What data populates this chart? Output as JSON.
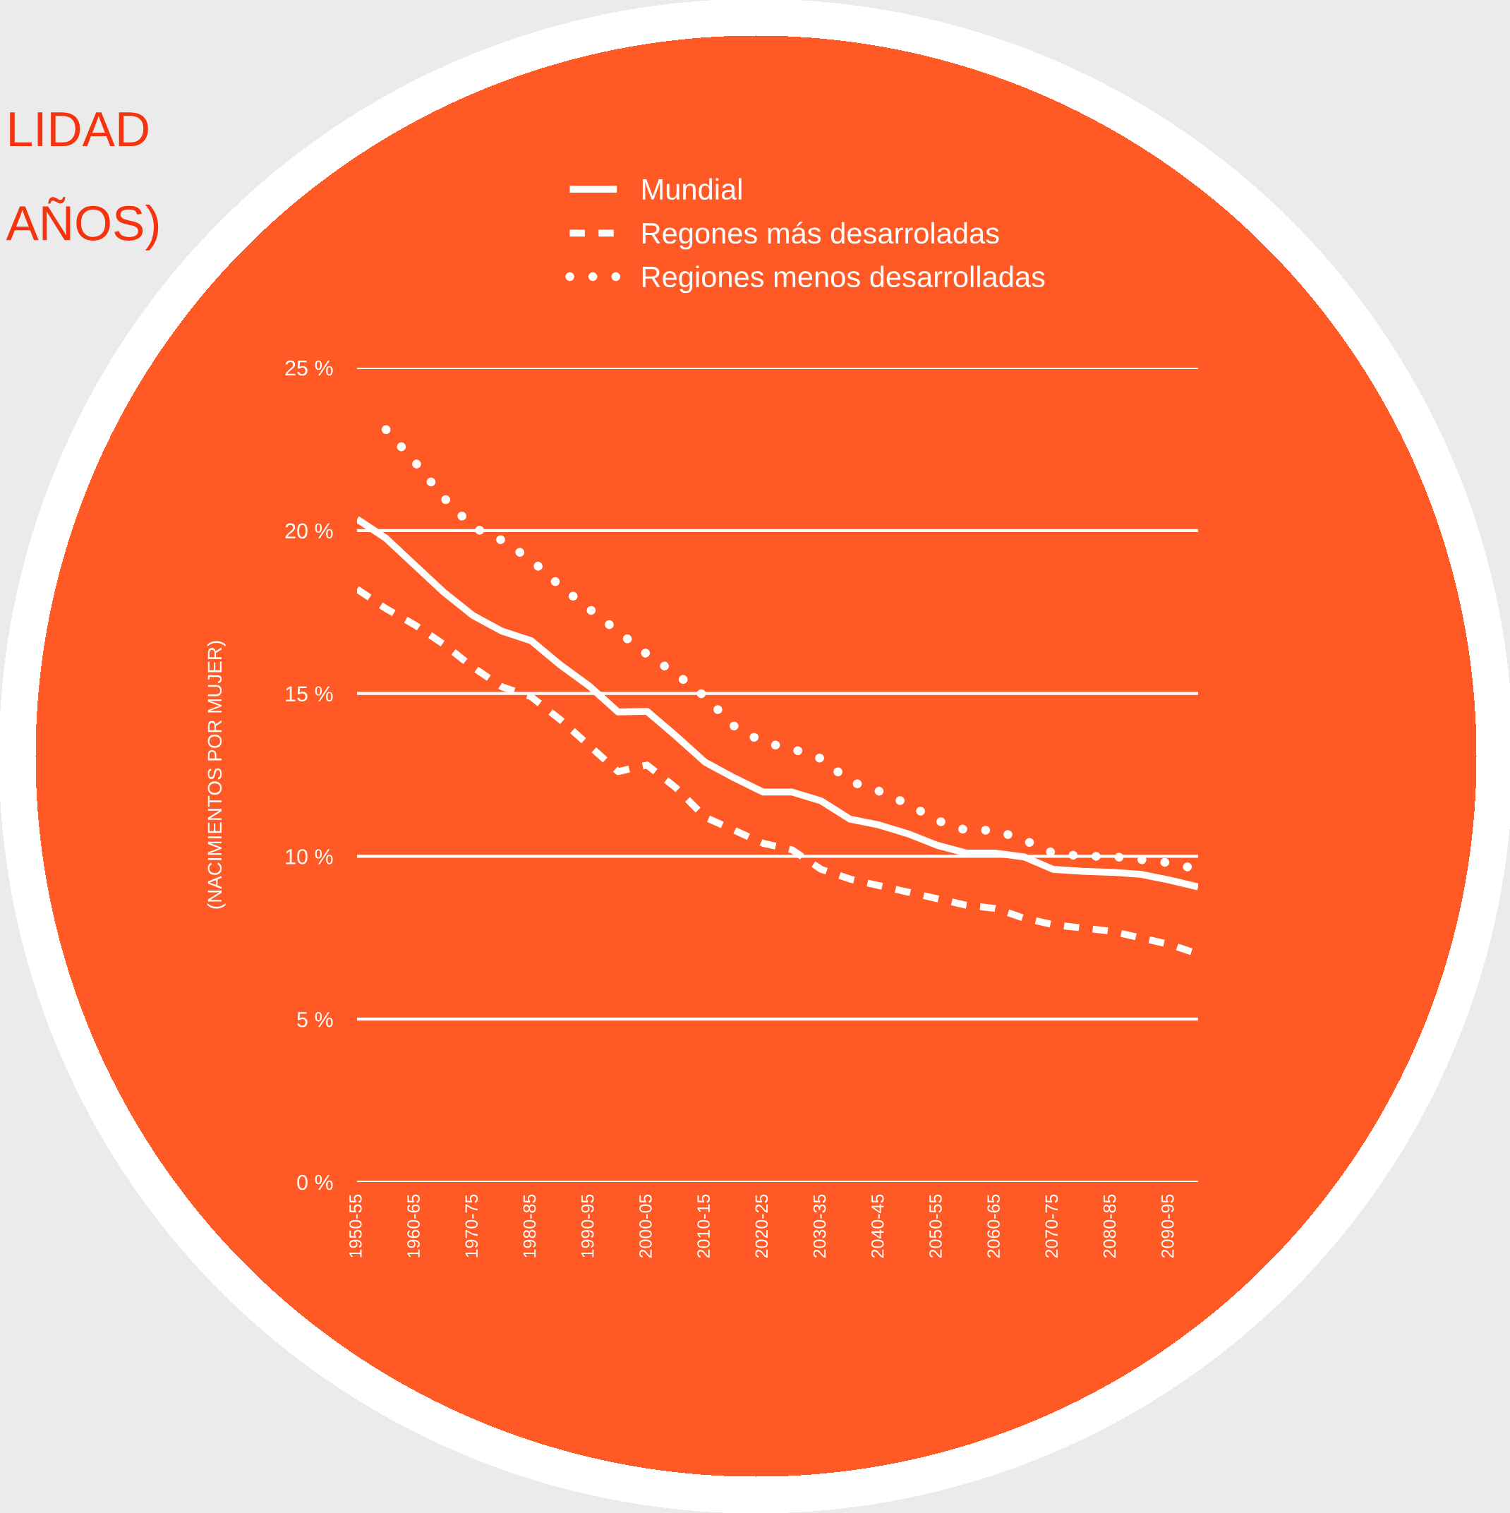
{
  "chart_data": {
    "type": "line",
    "title": "LIDAD",
    "subtitle": "AÑOS)",
    "ylabel": "(NACIMIENTOS POR MUJER)",
    "categories": [
      "1950-55",
      null,
      "1960-65",
      null,
      "1970-75",
      null,
      "1980-85",
      null,
      "1990-95",
      null,
      "2000-05",
      null,
      "2010-15",
      null,
      "2020-25",
      null,
      "2030-35",
      null,
      "2040-45",
      null,
      "2050-55",
      null,
      "2060-65",
      null,
      "2070-75",
      null,
      "2080-85",
      null,
      "2090-95",
      null
    ],
    "series": [
      {
        "name": "Mundial",
        "color": "#ffffff",
        "line_style": "solid",
        "values": [
          20.35,
          19.76,
          18.93,
          18.1,
          17.39,
          16.91,
          16.62,
          15.88,
          15.23,
          14.43,
          14.45,
          13.69,
          12.89,
          12.41,
          11.97,
          11.97,
          11.7,
          11.14,
          10.96,
          10.69,
          10.34,
          10.1,
          10.1,
          9.98,
          9.6,
          9.54,
          9.51,
          9.45,
          9.27,
          9.06
        ]
      },
      {
        "name": "Regones más desarroladas",
        "color": "#ffffff",
        "line_style": "dashed",
        "values": [
          18.2,
          17.6,
          17.1,
          16.5,
          15.8,
          15.2,
          14.9,
          14.2,
          13.4,
          12.6,
          12.8,
          12.1,
          11.2,
          10.8,
          10.4,
          10.2,
          9.6,
          9.3,
          9.1,
          8.9,
          8.7,
          8.5,
          8.4,
          8.1,
          7.9,
          7.8,
          7.7,
          7.5,
          7.3,
          7.0
        ]
      },
      {
        "name": "Regiones menos desarrolladas",
        "color": "#ffffff",
        "line_style": "dotted",
        "values": [
          null,
          23.1,
          22.1,
          21.0,
          20.1,
          19.7,
          19.1,
          18.3,
          17.6,
          16.9,
          16.2,
          15.6,
          14.9,
          14.0,
          13.5,
          13.3,
          13.0,
          12.3,
          12.0,
          11.6,
          11.1,
          10.8,
          10.8,
          10.5,
          10.1,
          10.0,
          10.0,
          9.9,
          9.8,
          9.6
        ]
      }
    ],
    "ylim": [
      0,
      25
    ],
    "yticks": [
      {
        "value": 0,
        "label": "0 %"
      },
      {
        "value": 5,
        "label": "5 %"
      },
      {
        "value": 10,
        "label": "10 %"
      },
      {
        "value": 15,
        "label": "15 %"
      },
      {
        "value": 20,
        "label": "20 %"
      },
      {
        "value": 25,
        "label": "25 %"
      }
    ],
    "grid": "y",
    "legend": "top",
    "marker": "none"
  }
}
